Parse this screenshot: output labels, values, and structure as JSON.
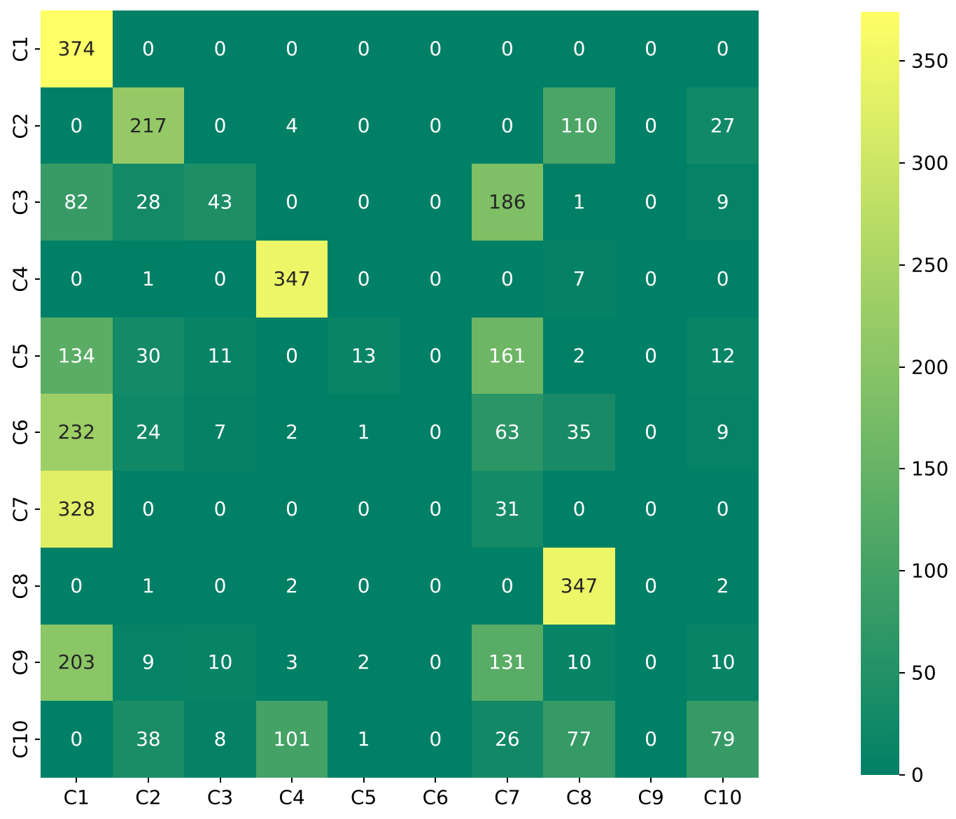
{
  "chart_data": {
    "type": "heatmap",
    "title": "",
    "xlabel": "",
    "ylabel": "",
    "row_labels": [
      "C1",
      "C2",
      "C3",
      "C4",
      "C5",
      "C6",
      "C7",
      "C8",
      "C9",
      "C10"
    ],
    "col_labels": [
      "C1",
      "C2",
      "C3",
      "C4",
      "C5",
      "C6",
      "C7",
      "C8",
      "C9",
      "C10"
    ],
    "matrix": [
      [
        374,
        0,
        0,
        0,
        0,
        0,
        0,
        0,
        0,
        0
      ],
      [
        0,
        217,
        0,
        4,
        0,
        0,
        0,
        110,
        0,
        27
      ],
      [
        82,
        28,
        43,
        0,
        0,
        0,
        186,
        1,
        0,
        9
      ],
      [
        0,
        1,
        0,
        347,
        0,
        0,
        0,
        7,
        0,
        0
      ],
      [
        134,
        30,
        11,
        0,
        13,
        0,
        161,
        2,
        0,
        12
      ],
      [
        232,
        24,
        7,
        2,
        1,
        0,
        63,
        35,
        0,
        9
      ],
      [
        328,
        0,
        0,
        0,
        0,
        0,
        31,
        0,
        0,
        0
      ],
      [
        0,
        1,
        0,
        2,
        0,
        0,
        0,
        347,
        0,
        2
      ],
      [
        203,
        9,
        10,
        3,
        2,
        0,
        131,
        10,
        0,
        10
      ],
      [
        0,
        38,
        8,
        101,
        1,
        0,
        26,
        77,
        0,
        79
      ]
    ],
    "vmin": 0,
    "vmax": 374,
    "colormap": {
      "name": "summer",
      "low": "#008066",
      "high": "#ffff66"
    },
    "annotation_colors": {
      "light": "#ffffff",
      "dark": "#262626"
    },
    "colorbar": {
      "ticks": [
        0,
        50,
        100,
        150,
        200,
        250,
        300,
        350
      ],
      "position": "right"
    },
    "grid": false,
    "legend": false
  }
}
